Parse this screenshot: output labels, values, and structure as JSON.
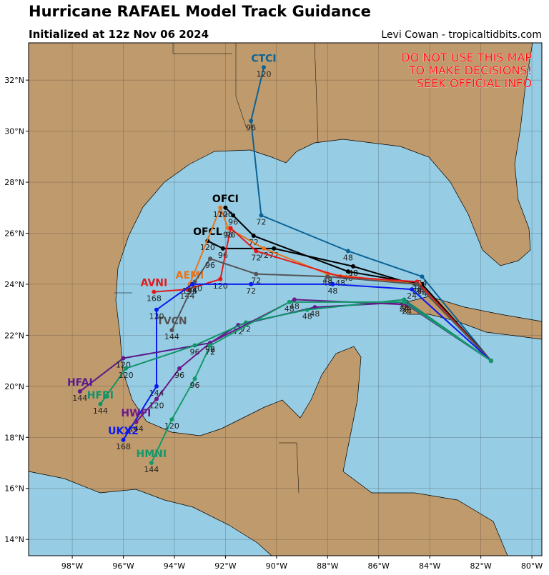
{
  "header": {
    "title": "Hurricane RAFAEL Model Track Guidance",
    "subtitle": "Initialized at 12z Nov 06 2024",
    "credit": "Levi Cowan - tropicaltidbits.com"
  },
  "warning": [
    "DO NOT USE THIS MAP",
    "TO MAKE DECISIONS!",
    "SEEK OFFICIAL INFO"
  ],
  "map": {
    "xlim": [
      -99.71,
      -79.61
    ],
    "ylim": [
      13.36,
      33.46
    ],
    "xticks": [
      {
        "value": -98,
        "label": "98°W"
      },
      {
        "value": -96,
        "label": "96°W"
      },
      {
        "value": -94,
        "label": "94°W"
      },
      {
        "value": -92,
        "label": "92°W"
      },
      {
        "value": -90,
        "label": "90°W"
      },
      {
        "value": -88,
        "label": "88°W"
      },
      {
        "value": -86,
        "label": "86°W"
      },
      {
        "value": -84,
        "label": "84°W"
      },
      {
        "value": -82,
        "label": "82°W"
      },
      {
        "value": -80,
        "label": "80°W"
      }
    ],
    "yticks": [
      {
        "value": 14,
        "label": "14°N"
      },
      {
        "value": 16,
        "label": "16°N"
      },
      {
        "value": 18,
        "label": "18°N"
      },
      {
        "value": 20,
        "label": "20°N"
      },
      {
        "value": 22,
        "label": "22°N"
      },
      {
        "value": 24,
        "label": "24°N"
      },
      {
        "value": 26,
        "label": "26°N"
      },
      {
        "value": 28,
        "label": "28°N"
      },
      {
        "value": 30,
        "label": "30°N"
      },
      {
        "value": 32,
        "label": "32°N"
      }
    ],
    "tracks": [
      {
        "name": "CTCI",
        "color": "#0b6396",
        "hours": [
          0,
          24,
          48,
          72,
          96,
          120
        ],
        "lon": [
          -81.6,
          -84.3,
          -87.2,
          -90.6,
          -91.0,
          -90.5
        ],
        "lat": [
          21.0,
          24.3,
          25.3,
          26.7,
          30.4,
          32.5
        ]
      },
      {
        "name": "OFCL",
        "color": "#000000",
        "hours": [
          0,
          24,
          48,
          72,
          96,
          120
        ],
        "lon": [
          -81.6,
          -84.3,
          -87.0,
          -90.1,
          -92.1,
          -92.7
        ],
        "lat": [
          21.0,
          23.9,
          24.7,
          25.4,
          25.4,
          25.7
        ]
      },
      {
        "name": "OFCI",
        "color": "#000000",
        "hours": [
          0,
          24,
          48,
          72,
          96,
          120
        ],
        "lon": [
          -81.6,
          -84.3,
          -87.2,
          -90.9,
          -91.7,
          -92.0
        ],
        "lat": [
          21.0,
          24.0,
          24.5,
          25.9,
          26.7,
          27.0
        ]
      },
      {
        "name": "AEMI",
        "color": "#e8731b",
        "hours": [
          0,
          24,
          48,
          72,
          96,
          120,
          144
        ],
        "lon": [
          -81.6,
          -84.4,
          -88.0,
          -90.5,
          -91.9,
          -92.2,
          -93.4
        ],
        "lat": [
          21.0,
          24.0,
          24.4,
          25.4,
          26.2,
          27.0,
          24.0
        ]
      },
      {
        "name": "AVNI",
        "color": "#e31a1c",
        "hours": [
          0,
          24,
          48,
          72,
          96,
          120,
          144,
          168
        ],
        "lon": [
          -81.6,
          -84.5,
          -87.5,
          -90.8,
          -91.8,
          -92.2,
          -93.5,
          -94.8
        ],
        "lat": [
          21.0,
          24.1,
          24.3,
          25.3,
          26.2,
          24.2,
          23.8,
          23.7
        ]
      },
      {
        "name": "TVCN",
        "color": "#555555",
        "hours": [
          0,
          24,
          48,
          72,
          96,
          120,
          144
        ],
        "lon": [
          -81.6,
          -84.5,
          -88.0,
          -90.8,
          -92.6,
          -93.2,
          -94.1
        ],
        "lat": [
          21.0,
          24.0,
          24.3,
          24.4,
          25.0,
          24.1,
          22.2
        ]
      },
      {
        "name": "UKX2",
        "color": "#0a1aee",
        "hours": [
          0,
          24,
          48,
          72,
          96,
          120,
          144,
          168
        ],
        "lon": [
          -81.6,
          -84.7,
          -87.8,
          -91.0,
          -93.3,
          -94.7,
          -94.7,
          -96.0
        ],
        "lat": [
          21.0,
          23.8,
          24.0,
          24.0,
          24.0,
          23.0,
          20.0,
          17.9
        ]
      },
      {
        "name": "HFAI",
        "color": "#5a1a8a",
        "hours": [
          0,
          24,
          48,
          72,
          96,
          120,
          144
        ],
        "lon": [
          -81.6,
          -84.9,
          -88.5,
          -91.5,
          -92.6,
          -96.0,
          -97.7
        ],
        "lat": [
          21.0,
          23.3,
          23.1,
          22.4,
          21.7,
          21.1,
          19.8
        ]
      },
      {
        "name": "HFBI",
        "color": "#11936a",
        "hours": [
          0,
          24,
          48,
          72,
          96,
          120,
          144
        ],
        "lon": [
          -81.6,
          -85.0,
          -88.8,
          -91.2,
          -93.2,
          -95.9,
          -96.9
        ],
        "lat": [
          21.0,
          23.4,
          23.0,
          22.5,
          21.6,
          20.7,
          19.3
        ]
      },
      {
        "name": "HWFI",
        "color": "#6a1a8a",
        "hours": [
          0,
          24,
          48,
          72,
          96,
          120,
          144
        ],
        "lon": [
          -81.6,
          -84.9,
          -89.3,
          -92.6,
          -93.8,
          -94.7,
          -95.5
        ],
        "lat": [
          21.0,
          23.2,
          23.4,
          21.7,
          20.7,
          19.5,
          18.6
        ]
      },
      {
        "name": "HMNI",
        "color": "#139a6a",
        "hours": [
          0,
          24,
          48,
          72,
          96,
          120,
          144
        ],
        "lon": [
          -81.6,
          -85.0,
          -89.5,
          -92.6,
          -93.2,
          -94.1,
          -94.9
        ],
        "lat": [
          21.0,
          23.3,
          23.3,
          21.6,
          20.3,
          18.7,
          17.0
        ]
      }
    ]
  }
}
